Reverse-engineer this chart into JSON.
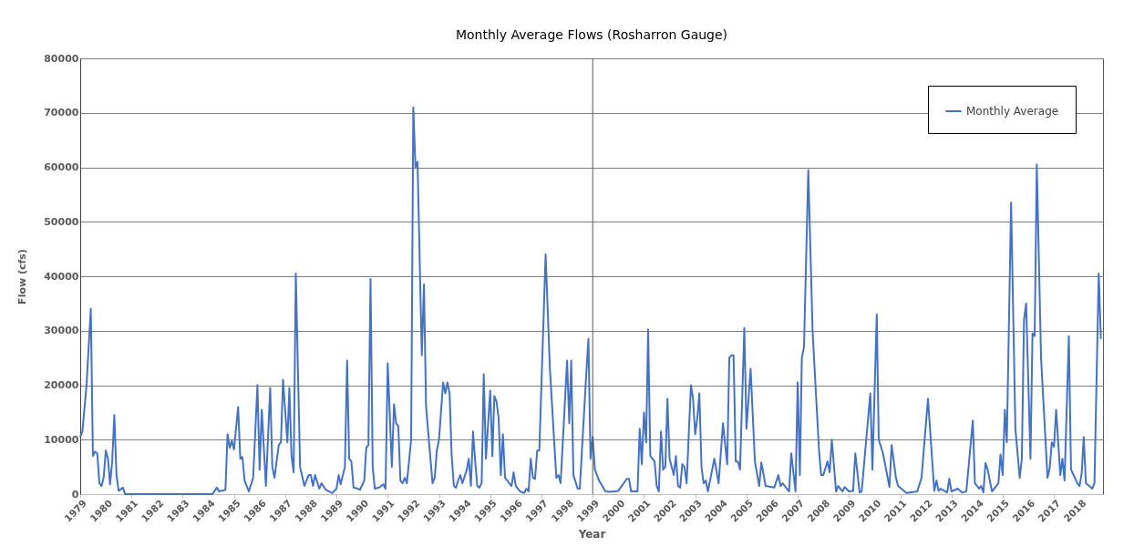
{
  "chart_data": {
    "type": "line",
    "title": "Monthly Average Flows (Rosharron Gauge)",
    "xlabel": "Year",
    "ylabel": "Flow (cfs)",
    "x": [
      "1979-01",
      "1979-02",
      "1979-04",
      "1979-06",
      "1979-07",
      "1979-08",
      "1979-09",
      "1979-10",
      "1979-11",
      "1979-12",
      "1980-01",
      "1980-02",
      "1980-03",
      "1980-04",
      "1980-05",
      "1980-06",
      "1980-07",
      "1980-09",
      "1980-10",
      "1984-03",
      "1984-05",
      "1984-06",
      "1984-09",
      "1984-10",
      "1984-11",
      "1984-12",
      "1985-01",
      "1985-03",
      "1985-04",
      "1985-05",
      "1985-06",
      "1985-08",
      "1985-10",
      "1985-12",
      "1986-01",
      "1986-02",
      "1986-04",
      "1986-06",
      "1986-07",
      "1986-08",
      "1986-10",
      "1986-11",
      "1986-12",
      "1987-02",
      "1987-03",
      "1987-04",
      "1987-05",
      "1987-06",
      "1987-08",
      "1987-10",
      "1987-12",
      "1988-01",
      "1988-02",
      "1988-03",
      "1988-05",
      "1988-06",
      "1988-08",
      "1988-11",
      "1989-01",
      "1989-02",
      "1989-03",
      "1989-05",
      "1989-06",
      "1989-07",
      "1989-08",
      "1989-09",
      "1989-11",
      "1989-12",
      "1990-02",
      "1990-03",
      "1990-04",
      "1990-05",
      "1990-06",
      "1990-07",
      "1990-09",
      "1990-11",
      "1990-12",
      "1991-01",
      "1991-03",
      "1991-04",
      "1991-05",
      "1991-06",
      "1991-07",
      "1991-08",
      "1991-09",
      "1991-10",
      "1991-12",
      "1992-01",
      "1992-02",
      "1992-03",
      "1992-05",
      "1992-06",
      "1992-07",
      "1992-10",
      "1992-11",
      "1992-12",
      "1993-01",
      "1993-03",
      "1993-04",
      "1993-05",
      "1993-06",
      "1993-07",
      "1993-08",
      "1993-09",
      "1993-10",
      "1993-11",
      "1993-12",
      "1994-02",
      "1994-03",
      "1994-04",
      "1994-05",
      "1994-06",
      "1994-07",
      "1994-08",
      "1994-09",
      "1994-10",
      "1994-11",
      "1995-01",
      "1995-02",
      "1995-03",
      "1995-04",
      "1995-05",
      "1995-06",
      "1995-07",
      "1995-08",
      "1995-09",
      "1995-11",
      "1995-12",
      "1996-01",
      "1996-03",
      "1996-05",
      "1996-06",
      "1996-07",
      "1996-08",
      "1996-09",
      "1996-10",
      "1996-11",
      "1996-12",
      "1997-03",
      "1997-05",
      "1997-08",
      "1997-09",
      "1997-10",
      "1998-01",
      "1998-02",
      "1998-03",
      "1998-04",
      "1998-06",
      "1998-07",
      "1998-10",
      "1998-11",
      "1998-12",
      "1999-01",
      "1999-02",
      "1999-04",
      "1999-07",
      "1999-09",
      "2000-01",
      "2000-05",
      "2000-06",
      "2000-07",
      "2000-10",
      "2000-11",
      "2000-12",
      "2001-01",
      "2001-02",
      "2001-03",
      "2001-04",
      "2001-06",
      "2001-07",
      "2001-08",
      "2001-09",
      "2001-10",
      "2001-11",
      "2001-12",
      "2002-01",
      "2002-03",
      "2002-04",
      "2002-05",
      "2002-06",
      "2002-07",
      "2002-08",
      "2002-09",
      "2002-11",
      "2002-12",
      "2003-01",
      "2003-02",
      "2003-03",
      "2003-04",
      "2003-05",
      "2003-06",
      "2003-07",
      "2003-10",
      "2003-12",
      "2004-02",
      "2004-04",
      "2004-05",
      "2004-06",
      "2004-07",
      "2004-08",
      "2004-09",
      "2004-10",
      "2004-12",
      "2005-01",
      "2005-03",
      "2005-05",
      "2005-07",
      "2005-08",
      "2005-10",
      "2006-02",
      "2006-04",
      "2006-05",
      "2006-06",
      "2006-09",
      "2006-10",
      "2006-12",
      "2007-01",
      "2007-02",
      "2007-03",
      "2007-04",
      "2007-06",
      "2007-08",
      "2007-11",
      "2007-12",
      "2008-01",
      "2008-03",
      "2008-04",
      "2008-05",
      "2008-07",
      "2008-08",
      "2008-10",
      "2008-11",
      "2009-01",
      "2009-03",
      "2009-04",
      "2009-06",
      "2009-07",
      "2009-11",
      "2009-12",
      "2010-02",
      "2010-03",
      "2010-05",
      "2010-08",
      "2010-09",
      "2010-11",
      "2010-12",
      "2011-04",
      "2011-09",
      "2011-11",
      "2012-02",
      "2012-05",
      "2012-06",
      "2012-07",
      "2012-08",
      "2012-11",
      "2012-12",
      "2013-01",
      "2013-04",
      "2013-06",
      "2013-08",
      "2013-11",
      "2013-12",
      "2014-02",
      "2014-03",
      "2014-04",
      "2014-05",
      "2014-06",
      "2014-08",
      "2014-09",
      "2014-11",
      "2014-12",
      "2015-01",
      "2015-02",
      "2015-03",
      "2015-05",
      "2015-07",
      "2015-09",
      "2015-10",
      "2015-11",
      "2015-12",
      "2016-02",
      "2016-03",
      "2016-04",
      "2016-05",
      "2016-07",
      "2016-10",
      "2016-11",
      "2016-12",
      "2017-01",
      "2017-02",
      "2017-04",
      "2017-05",
      "2017-06",
      "2017-08",
      "2017-09",
      "2017-12",
      "2018-01",
      "2018-02",
      "2018-03",
      "2018-04",
      "2018-07",
      "2018-08",
      "2018-10",
      "2018-11"
    ],
    "series": [
      {
        "name": "Monthly Average",
        "color": "#4472c4",
        "values": [
          10500,
          11500,
          20000,
          34000,
          7000,
          7800,
          7500,
          2000,
          1500,
          3000,
          8000,
          6500,
          1800,
          6000,
          14500,
          3500,
          600,
          1200,
          0,
          0,
          1200,
          500,
          800,
          11000,
          8500,
          9800,
          8200,
          16000,
          6500,
          6800,
          2500,
          500,
          3000,
          20000,
          4500,
          15500,
          1500,
          19500,
          5000,
          3000,
          9000,
          9500,
          21000,
          9500,
          19500,
          7000,
          4000,
          40500,
          5000,
          1500,
          3500,
          3500,
          1500,
          3500,
          1000,
          2000,
          800,
          200,
          1000,
          3500,
          1800,
          5000,
          24500,
          6500,
          6000,
          1200,
          1000,
          800,
          2500,
          8500,
          9000,
          39500,
          5000,
          1000,
          1200,
          1800,
          1000,
          24000,
          5000,
          16500,
          13000,
          12500,
          2500,
          2000,
          3000,
          2000,
          10000,
          71000,
          60000,
          61000,
          25500,
          38500,
          16000,
          2000,
          3000,
          8000,
          10000,
          20500,
          18500,
          20500,
          18500,
          7000,
          1500,
          1200,
          2500,
          3500,
          2000,
          4500,
          6500,
          1500,
          11500,
          6000,
          1500,
          1200,
          2000,
          22000,
          6500,
          19000,
          7000,
          18000,
          17000,
          14000,
          3500,
          11000,
          3000,
          2500,
          1500,
          4000,
          1500,
          500,
          200,
          1000,
          500,
          6500,
          3000,
          2800,
          8000,
          8000,
          44000,
          23000,
          3000,
          3500,
          2000,
          24500,
          13000,
          24500,
          3500,
          1000,
          1000,
          22000,
          28500,
          6500,
          10500,
          4500,
          2500,
          500,
          400,
          600,
          2800,
          2800,
          500,
          500,
          12000,
          5500,
          15000,
          9500,
          30200,
          7000,
          6000,
          1500,
          500,
          11500,
          4500,
          5000,
          17500,
          6500,
          3500,
          7000,
          1500,
          1200,
          5500,
          5000,
          2000,
          20000,
          17500,
          11000,
          14000,
          18500,
          5000,
          2000,
          2500,
          500,
          6500,
          2000,
          13000,
          5500,
          25000,
          25500,
          25500,
          6000,
          6000,
          4500,
          30500,
          12000,
          23000,
          6000,
          1500,
          5800,
          1500,
          1200,
          3500,
          1500,
          2000,
          500,
          7500,
          500,
          20500,
          3500,
          25000,
          27000,
          59500,
          30000,
          8000,
          3500,
          3500,
          6000,
          4000,
          10000,
          500,
          1500,
          500,
          1300,
          500,
          600,
          7500,
          300,
          500,
          18500,
          4500,
          33000,
          10000,
          7500,
          1300,
          9000,
          3000,
          1500,
          200,
          500,
          3000,
          17500,
          600,
          2500,
          600,
          1000,
          300,
          2800,
          500,
          1000,
          300,
          500,
          13500,
          2000,
          1000,
          1500,
          300,
          5700,
          4500,
          500,
          1000,
          2000,
          7300,
          3500,
          15500,
          9500,
          53500,
          12000,
          3000,
          6500,
          32000,
          35000,
          6500,
          29500,
          29000,
          60500,
          25000,
          3000,
          4800,
          9500,
          8700,
          15500,
          3500,
          6500,
          2500,
          29000,
          4500,
          2000,
          1500,
          4000,
          10500,
          2000,
          1000,
          2000,
          40500,
          28500
        ]
      }
    ],
    "xlim": [
      "1979-01",
      "2018-12"
    ],
    "xticks": [
      "1979",
      "1980",
      "1981",
      "1982",
      "1983",
      "1984",
      "1985",
      "1986",
      "1987",
      "1988",
      "1989",
      "1990",
      "1991",
      "1992",
      "1993",
      "1994",
      "1995",
      "1996",
      "1997",
      "1998",
      "1999",
      "2000",
      "2001",
      "2002",
      "2003",
      "2004",
      "2005",
      "2006",
      "2007",
      "2008",
      "2009",
      "2010",
      "2011",
      "2012",
      "2013",
      "2014",
      "2015",
      "2016",
      "2017",
      "2018"
    ],
    "ylim": [
      0,
      80000
    ],
    "yticks": [
      0,
      10000,
      20000,
      30000,
      40000,
      50000,
      60000,
      70000,
      80000
    ],
    "ref_lines": [
      {
        "axis": "x",
        "value": "1999",
        "color": "#595959"
      }
    ],
    "grid": "y",
    "legend": "top right"
  }
}
